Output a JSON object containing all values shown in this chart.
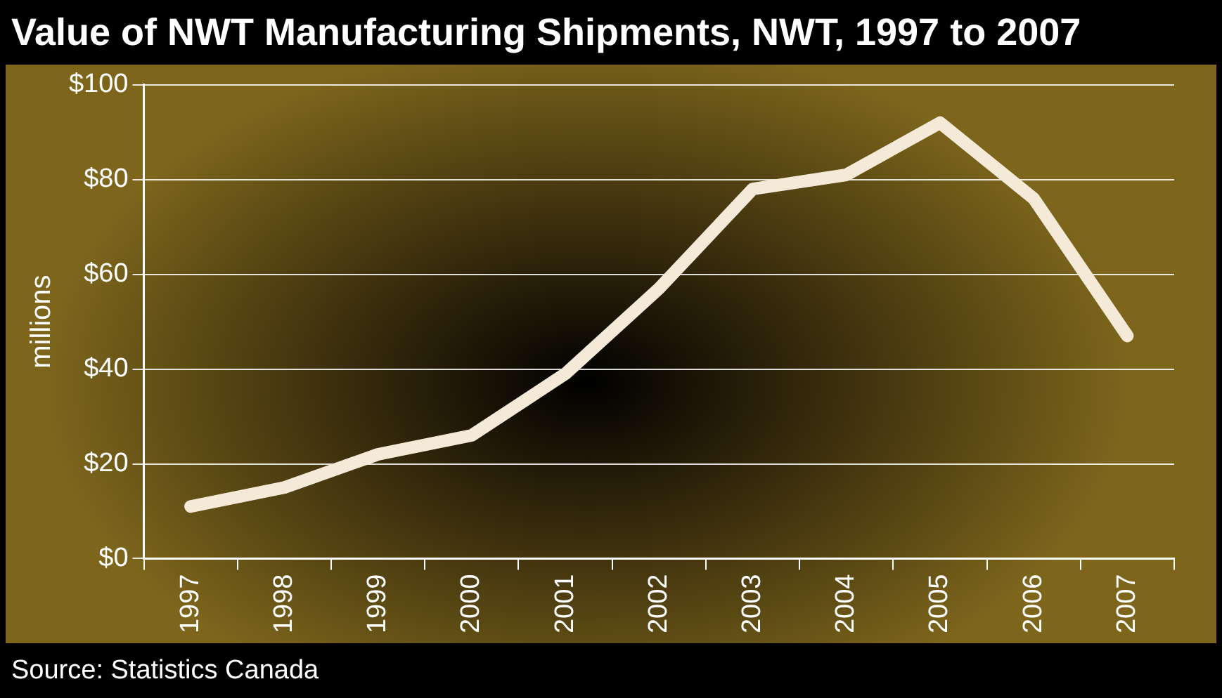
{
  "chart_data": {
    "type": "line",
    "title": "Value of NWT Manufacturing Shipments, NWT, 1997 to 2007",
    "ylabel": "millions",
    "annotations": [
      "Source: Statistics Canada"
    ],
    "categories": [
      "1997",
      "1998",
      "1999",
      "2000",
      "2001",
      "2002",
      "2003",
      "2004",
      "2005",
      "2006",
      "2007"
    ],
    "series": [
      {
        "color": "#f5ead8",
        "values": [
          11,
          15,
          22,
          26,
          39,
          57,
          78,
          81,
          92,
          76,
          47
        ]
      }
    ],
    "ylim": [
      0,
      100
    ],
    "yticks": [
      {
        "value": 0,
        "label": "$0"
      },
      {
        "value": 20,
        "label": "$20"
      },
      {
        "value": 40,
        "label": "$40"
      },
      {
        "value": 60,
        "label": "$60"
      },
      {
        "value": 80,
        "label": "$80"
      },
      {
        "value": 100,
        "label": "$100"
      }
    ],
    "grid": "y",
    "legend": false,
    "marker": "none",
    "line_style": "solid"
  }
}
